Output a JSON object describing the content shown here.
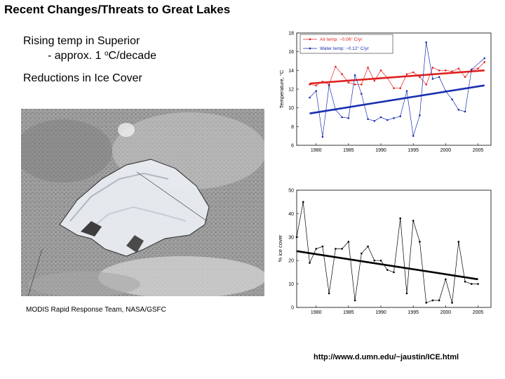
{
  "slide": {
    "title": "Recent Changes/Threats to Great Lakes",
    "bullet1_line1": "Rising temp in Superior",
    "bullet1_line2_pre": "- approx. 1 ",
    "bullet1_line2_sup": "o",
    "bullet1_line2_post": "C/decade",
    "bullet2": "Reductions in Ice Cover",
    "image_credit": "MODIS Rapid Response Team, NASA/GSFC",
    "source_url": "http://www.d.umn.edu/~jaustin/ICE.html"
  },
  "colors": {
    "air": "#e02020",
    "water": "#1a2fb0",
    "ice": "#000000"
  },
  "chart_data": [
    {
      "type": "line",
      "ylabel": "Temperature, °C",
      "xlim": [
        1977,
        2007
      ],
      "ylim": [
        6,
        18
      ],
      "xticks": [
        1980,
        1985,
        1990,
        1995,
        2000,
        2005
      ],
      "yticks": [
        6,
        8,
        10,
        12,
        14,
        16,
        18
      ],
      "legend_position": "top-left",
      "series": [
        {
          "name": "Air temp: ~0.06° C/yr",
          "color": "#e02020",
          "x": [
            1979,
            1980,
            1981,
            1982,
            1983,
            1984,
            1985,
            1986,
            1987,
            1988,
            1989,
            1990,
            1991,
            1992,
            1993,
            1994,
            1995,
            1996,
            1997,
            1998,
            1999,
            2000,
            2001,
            2002,
            2003,
            2004,
            2005,
            2006
          ],
          "y": [
            12.5,
            12.4,
            12.8,
            12.5,
            14.4,
            13.6,
            12.7,
            12.5,
            12.5,
            14.3,
            12.9,
            14.0,
            13.2,
            12.1,
            12.1,
            13.6,
            13.8,
            13.3,
            12.5,
            14.3,
            14.0,
            14.0,
            13.9,
            14.2,
            13.3,
            14.1,
            14.2,
            14.9
          ],
          "trend": [
            12.6,
            14.0
          ]
        },
        {
          "name": "Water temp: ~0.12° C/yr",
          "color": "#1a2fb0",
          "x": [
            1979,
            1980,
            1981,
            1982,
            1983,
            1984,
            1985,
            1986,
            1987,
            1988,
            1989,
            1990,
            1991,
            1992,
            1993,
            1994,
            1995,
            1996,
            1997,
            1998,
            1999,
            2000,
            2001,
            2002,
            2003,
            2004,
            2005,
            2006
          ],
          "y": [
            11.1,
            11.8,
            6.9,
            12.4,
            9.8,
            9.0,
            8.9,
            13.5,
            11.5,
            8.8,
            8.6,
            9.0,
            8.7,
            8.9,
            9.1,
            11.8,
            7.0,
            9.2,
            17.0,
            13.1,
            13.3,
            11.8,
            10.9,
            9.8,
            9.6,
            14.1,
            null,
            15.3
          ],
          "trend": [
            9.4,
            12.4
          ]
        }
      ]
    },
    {
      "type": "line",
      "ylabel": "% ice cover",
      "xlim": [
        1977,
        2007
      ],
      "ylim": [
        0,
        50
      ],
      "xticks": [
        1980,
        1985,
        1990,
        1995,
        2000,
        2005
      ],
      "yticks": [
        0,
        10,
        20,
        30,
        40,
        50
      ],
      "series": [
        {
          "name": "",
          "color": "#000000",
          "x": [
            1977,
            1978,
            1979,
            1980,
            1981,
            1982,
            1983,
            1984,
            1985,
            1986,
            1987,
            1988,
            1989,
            1990,
            1991,
            1992,
            1993,
            1994,
            1995,
            1996,
            1997,
            1998,
            1999,
            2000,
            2001,
            2002,
            2003,
            2004,
            2005
          ],
          "y": [
            30,
            45,
            19,
            25,
            26,
            6,
            25,
            25,
            28,
            3,
            23,
            26,
            20,
            20,
            16,
            15,
            38,
            6,
            37,
            28,
            2,
            3,
            3,
            12,
            2,
            28,
            11,
            10,
            10
          ],
          "trend": [
            24,
            12
          ]
        }
      ]
    }
  ]
}
